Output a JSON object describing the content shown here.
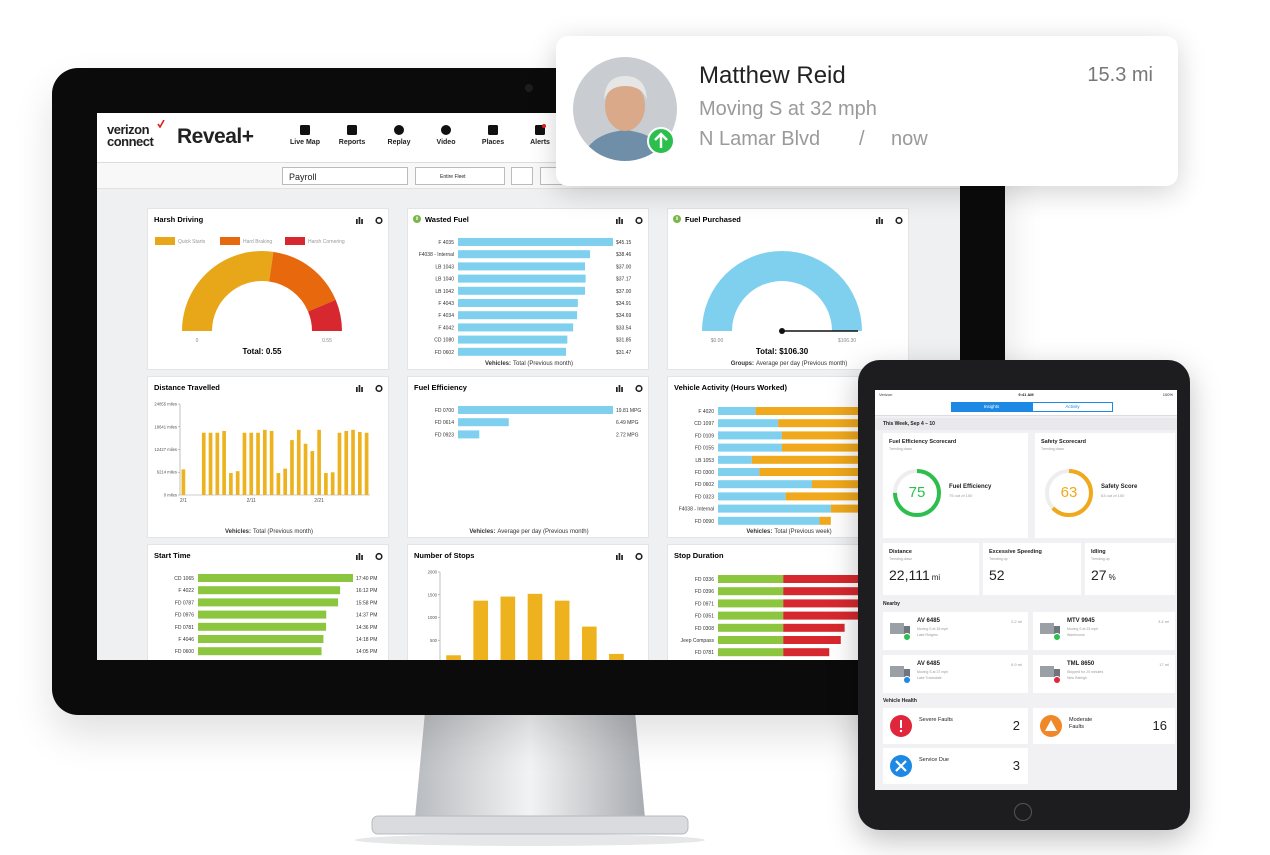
{
  "notification": {
    "name": "Matthew Reid",
    "distance": "15.3 mi",
    "status": "Moving S at 32 mph",
    "street": "N Lamar Blvd",
    "separator": "/",
    "time": "now"
  },
  "app": {
    "brand": [
      "verizon",
      "connect"
    ],
    "product": "Reveal+",
    "nav": [
      "Live Map",
      "Reports",
      "Replay",
      "Video",
      "Places",
      "Alerts"
    ],
    "filters": [
      "Payroll",
      "Entire Fleet"
    ]
  },
  "widgets": [
    {
      "title": "Harsh Driving",
      "chart": {
        "type": "gauge",
        "series": [
          {
            "name": "Quick Starts",
            "color": "#e8a718",
            "value": 0.3
          },
          {
            "name": "Hard Braking",
            "color": "#e8680e",
            "value": 0.18
          },
          {
            "name": "Harsh Cornering",
            "color": "#d6282e",
            "value": 0.07
          }
        ],
        "ticks": [
          0,
          0.55
        ],
        "total": "Total: 0.55"
      }
    },
    {
      "title": "Wasted Fuel",
      "info_icon": true,
      "chart": {
        "type": "hbar",
        "color": "#7fd0ee",
        "categories": [
          "F 4035",
          "F4038 - Internal",
          "LB 1043",
          "LB 1040",
          "LB 1042",
          "F 4043",
          "F 4034",
          "F 4042",
          "CD 1080",
          "FD 0602"
        ],
        "values": [
          45.15,
          38.46,
          37.0,
          37.17,
          37.0,
          34.91,
          34.69,
          33.54,
          31.85,
          31.47
        ],
        "value_labels": [
          "$45.15",
          "$38.46",
          "$37.00",
          "$37.17",
          "$37.00",
          "$34.91",
          "$34.69",
          "$33.54",
          "$31.85",
          "$31.47"
        ]
      },
      "footer": {
        "label": "Vehicles:",
        "text": "Total (Previous month)"
      }
    },
    {
      "title": "Fuel Purchased",
      "info_icon": true,
      "chart": {
        "type": "gauge",
        "needle": true,
        "series": [
          {
            "color": "#7fd0ee",
            "value": 106.3
          }
        ],
        "ticks": [
          {
            "value": 0,
            "label": "$0.00"
          },
          {
            "value": 106.3,
            "label": "$106.30"
          }
        ],
        "total": "Total: $106.30"
      },
      "footer": {
        "label": "Groups:",
        "text": "Average per day (Previous month)"
      }
    },
    {
      "title": "Distance Travelled",
      "chart": {
        "type": "vbar",
        "color": "#edb21e",
        "categories": [
          "2/1",
          null,
          null,
          null,
          null,
          null,
          null,
          null,
          null,
          null,
          "2/11",
          null,
          null,
          null,
          null,
          null,
          null,
          null,
          null,
          null,
          "2/21",
          null,
          null,
          null,
          null,
          null,
          null,
          null
        ],
        "values": [
          7000,
          0,
          0,
          17000,
          17000,
          17000,
          17500,
          6000,
          6500,
          17000,
          17000,
          17000,
          17800,
          17500,
          6000,
          7200,
          15000,
          17800,
          14000,
          12000,
          17800,
          6000,
          6200,
          17000,
          17500,
          17800,
          17200,
          17000
        ],
        "ylim": [
          0,
          24855
        ],
        "yticks": [
          {
            "value": 0,
            "label": "0 miles"
          },
          {
            "value": 6214,
            "label": "6214 miles"
          },
          {
            "value": 12427,
            "label": "12427 miles"
          },
          {
            "value": 18641,
            "label": "18641 miles"
          },
          {
            "value": 24855,
            "label": "24855 miles"
          }
        ]
      },
      "footer": {
        "label": "Vehicles:",
        "text": "Total (Previous month)"
      }
    },
    {
      "title": "Fuel Efficiency",
      "chart": {
        "type": "hbar",
        "color": "#7fd0ee",
        "categories": [
          "FD 0700",
          "FD 0614",
          "FD 0923"
        ],
        "values": [
          19.81,
          6.49,
          2.72
        ],
        "value_labels": [
          "19.81 MPG",
          "6.49 MPG",
          "2.72 MPG"
        ]
      },
      "footer": {
        "label": "Vehicles:",
        "text": "Average per day (Previous month)"
      }
    },
    {
      "title": "Vehicle Activity (Hours Worked)",
      "chart": {
        "type": "stacked_hbar",
        "categories": [
          "F 4020",
          "CD 1097",
          "FD 0109",
          "FD 0155",
          "LB 1053",
          "FD 0300",
          "FD 0602",
          "FD 0323",
          "F4038 - Internal",
          "FD 0090"
        ],
        "series": [
          {
            "color": "#7fd0ee",
            "values": [
              10,
              16,
              17,
              17,
              9,
              11,
              25,
              18,
              30,
              27
            ]
          },
          {
            "color": "#f0a81c",
            "values": [
              40,
              33,
              32,
              28,
              34,
              33,
              15,
              22,
              8,
              3
            ]
          }
        ]
      },
      "footer": {
        "label": "Vehicles:",
        "text": "Total (Previous week)"
      }
    },
    {
      "title": "Start Time",
      "chart": {
        "type": "hbar",
        "color": "#8cc63f",
        "categories": [
          "CD 1065",
          "F 4022",
          "FD 0787",
          "FD 0976",
          "FD 0781",
          "F 4046",
          "FD 0600"
        ],
        "values": [
          17.67,
          16.2,
          15.97,
          14.62,
          14.6,
          14.3,
          14.08
        ],
        "value_labels": [
          "17:40 PM",
          "16:12 PM",
          "15:58 PM",
          "14:37 PM",
          "14:36 PM",
          "14:18 PM",
          "14:05 PM"
        ]
      }
    },
    {
      "title": "Number of Stops",
      "chart": {
        "type": "vbar",
        "color": "#edb21e",
        "categories": [
          null,
          null,
          null,
          null,
          null,
          null,
          null
        ],
        "values": [
          170,
          1370,
          1460,
          1520,
          1370,
          800,
          200
        ],
        "ylim": [
          0,
          2000
        ],
        "yticks": [
          0,
          500,
          1000,
          1500,
          2000
        ]
      }
    },
    {
      "title": "Stop Duration",
      "chart": {
        "type": "stacked_hbar",
        "categories": [
          "FD 0336",
          "FD 0396",
          "FD 0971",
          "FD 0351",
          "FD 0308",
          "Jeep Compass",
          "FD 0781"
        ],
        "series": [
          {
            "color": "#8cc63f",
            "values": [
              17,
              17,
              17,
              17,
              17,
              17,
              17
            ]
          },
          {
            "color": "#d6282e",
            "values": [
              32,
              31,
              25,
              22,
              16,
              15,
              12
            ]
          }
        ]
      }
    }
  ],
  "tablet": {
    "status": {
      "carrier": "Verizon",
      "time": "9:41 AM",
      "battery": "100%"
    },
    "tabs": [
      "Insights",
      "Activity"
    ],
    "week": "This Week, Sep 4 – 10",
    "scorecards": [
      {
        "title": "Fuel Efficiency Scorecard",
        "trend": "Trending down",
        "score": 75,
        "label": "Fuel Efficiency",
        "detail": "75 out of 100",
        "color": "#2dbf4e"
      },
      {
        "title": "Safety Scorecard",
        "trend": "Trending down",
        "score": 63,
        "label": "Safety Score",
        "detail": "63 out of 100",
        "color": "#f0a81c"
      }
    ],
    "stats": [
      {
        "title": "Distance",
        "trend": "Trending down",
        "value": "22,111",
        "unit": "mi"
      },
      {
        "title": "Excessive Speeding",
        "trend": "Trending up",
        "value": "52"
      },
      {
        "title": "Idling",
        "trend": "Trending up",
        "value": "27",
        "unit": "%"
      }
    ],
    "nearby_title": "Nearby",
    "nearby": [
      {
        "name": "AV 6485",
        "status": "Moving S at 18 mph",
        "place": "Lake Rutgers",
        "distance": "2.2 mi",
        "color": "#2dbf4e"
      },
      {
        "name": "MTV 9945",
        "status": "Moving S at 23 mph",
        "place": "Warehouse",
        "distance": "3.4 mi",
        "color": "#2dbf4e"
      },
      {
        "name": "AV 6485",
        "status": "Moving S at 37 mph",
        "place": "Lake Travisdale",
        "distance": "6.9 mi",
        "color": "#1e88e5"
      },
      {
        "name": "TML 8650",
        "status": "Stopped for 20 minutes",
        "place": "New Raleigh",
        "distance": "17 mi",
        "color": "#e0263a"
      }
    ],
    "health_title": "Vehicle Health",
    "health": [
      {
        "label": "Severe Faults",
        "count": 2,
        "color": "#e0263a"
      },
      {
        "label": "Moderate Faults",
        "count": 16,
        "color": "#f0882a"
      },
      {
        "label": "Service Due",
        "count": 3,
        "color": "#1e88e5"
      }
    ]
  }
}
